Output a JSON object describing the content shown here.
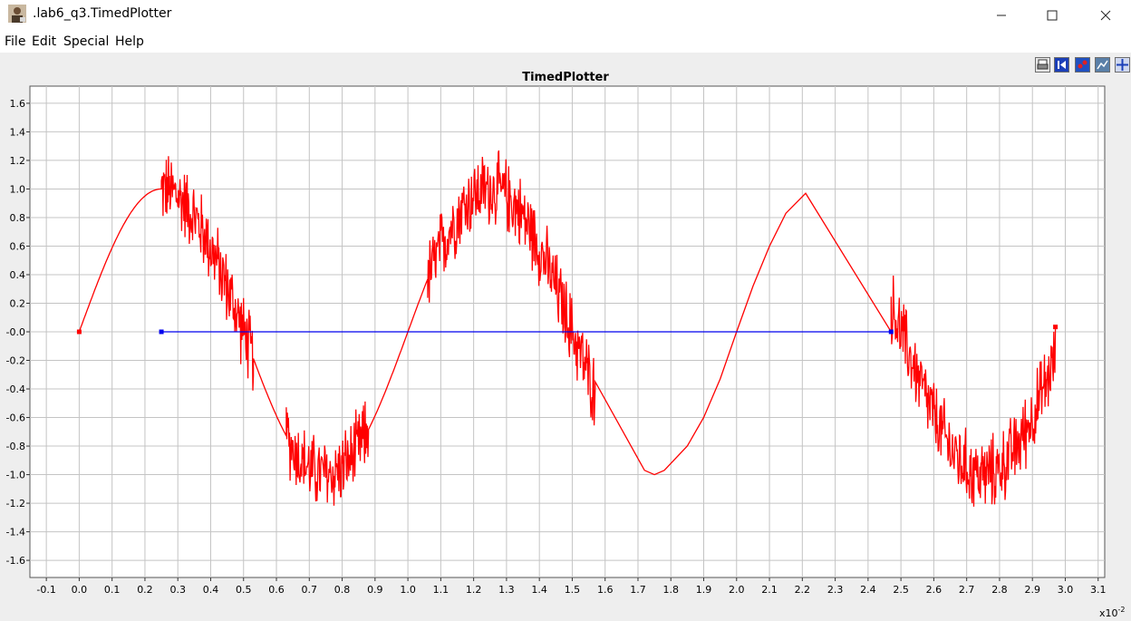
{
  "window": {
    "title": ".lab6_q3.TimedPlotter"
  },
  "menu": {
    "items": [
      "File",
      "Edit",
      "Special",
      "Help"
    ]
  },
  "toolbar": {
    "buttons": [
      "print-icon",
      "reset-axes-icon",
      "format-icon",
      "fill-icon",
      "zoom-fit-icon"
    ]
  },
  "colors": {
    "series_red": "#ff0000",
    "series_blue": "#0000ee",
    "grid": "#c4c4c4",
    "plot_bg": "#ffffff",
    "window_bg": "#eeeeee"
  },
  "chart_data": {
    "type": "line",
    "title": "TimedPlotter",
    "x_multiplier_label": "x10",
    "x_multiplier_exp": "-2",
    "xlim": [
      -0.15,
      3.12
    ],
    "ylim": [
      -1.72,
      1.72
    ],
    "grid": true,
    "x_ticks": [
      "-0.1",
      "0.0",
      "0.1",
      "0.2",
      "0.3",
      "0.4",
      "0.5",
      "0.6",
      "0.7",
      "0.8",
      "0.9",
      "1.0",
      "1.1",
      "1.2",
      "1.3",
      "1.4",
      "1.5",
      "1.6",
      "1.7",
      "1.8",
      "1.9",
      "2.0",
      "2.1",
      "2.2",
      "2.3",
      "2.4",
      "2.5",
      "2.6",
      "2.7",
      "2.8",
      "2.9",
      "3.0",
      "3.1"
    ],
    "y_ticks": [
      "1.6",
      "1.4",
      "1.2",
      "1.0",
      "0.8",
      "0.6",
      "0.4",
      "0.2",
      "-0.0",
      "-0.2",
      "-0.4",
      "-0.6",
      "-0.8",
      "-1.0",
      "-1.2",
      "-1.4",
      "-1.6"
    ],
    "series": [
      {
        "color": "#ff0000",
        "segments": [
          {
            "kind": "sine",
            "x_start": 0.0,
            "x_end": 0.25,
            "amplitude": 1.0,
            "period": 1.0,
            "noise": 0
          },
          {
            "kind": "sine",
            "x_start": 0.25,
            "x_end": 0.53,
            "amplitude": 1.0,
            "period": 1.0,
            "noise": 0.22
          },
          {
            "kind": "sine",
            "x_start": 0.53,
            "x_end": 0.63,
            "amplitude": 1.0,
            "period": 1.0,
            "noise": 0
          },
          {
            "kind": "sine",
            "x_start": 0.63,
            "x_end": 0.88,
            "amplitude": 1.0,
            "period": 1.0,
            "noise": 0.22
          },
          {
            "kind": "sine",
            "x_start": 0.88,
            "x_end": 1.06,
            "amplitude": 1.0,
            "period": 1.0,
            "noise": 0
          },
          {
            "kind": "sine",
            "x_start": 1.06,
            "x_end": 1.57,
            "amplitude": 1.0,
            "period": 1.0,
            "noise": 0.22
          },
          {
            "kind": "points",
            "x": [
              1.57,
              1.72,
              1.75,
              1.78,
              1.85,
              1.9,
              1.95,
              2.0,
              2.05,
              2.1,
              2.15,
              2.21,
              2.47
            ],
            "y": [
              -0.35,
              -0.97,
              -1.0,
              -0.97,
              -0.8,
              -0.6,
              -0.33,
              0.0,
              0.32,
              0.6,
              0.83,
              0.97,
              0.0
            ]
          },
          {
            "kind": "sine",
            "x_start": 2.47,
            "x_end": 2.97,
            "amplitude": 1.0,
            "period": 1.0,
            "noise": 0.22
          }
        ]
      },
      {
        "color": "#0000ee",
        "segments": [
          {
            "kind": "points",
            "x": [
              0.25,
              2.47
            ],
            "y": [
              0.0,
              0.0
            ]
          }
        ]
      }
    ]
  }
}
